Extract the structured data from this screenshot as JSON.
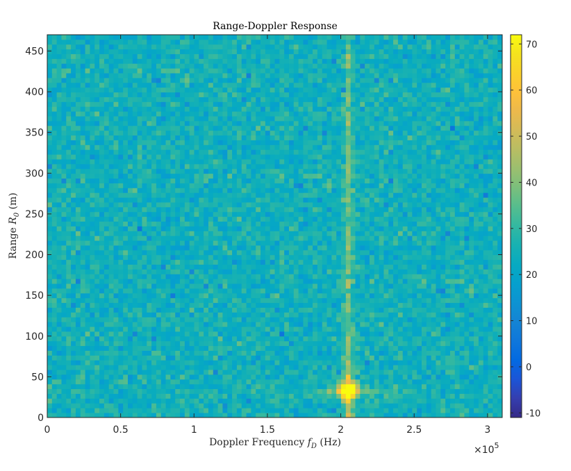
{
  "chart_data": {
    "type": "heatmap",
    "title": "Range-Doppler Response",
    "xlabel": "Doppler Frequency",
    "xlabel_symbol": "f",
    "xlabel_subscript": "D",
    "xlabel_unit": "(Hz)",
    "ylabel": "Range",
    "ylabel_symbol": "R",
    "ylabel_subscript": "0",
    "ylabel_unit": "(m)",
    "xlim": [
      0,
      310000
    ],
    "ylim": [
      0,
      470
    ],
    "x_tick_values": [
      0,
      50000,
      100000,
      150000,
      200000,
      250000,
      300000
    ],
    "x_tick_labels": [
      "0",
      "0.5",
      "1",
      "1.5",
      "2",
      "2.5",
      "3"
    ],
    "x_exponent_base": "×10",
    "x_exponent_power": "5",
    "y_tick_values": [
      0,
      50,
      100,
      150,
      200,
      250,
      300,
      350,
      400,
      450
    ],
    "y_tick_labels": [
      "0",
      "50",
      "100",
      "150",
      "200",
      "250",
      "300",
      "350",
      "400",
      "450"
    ],
    "colorbar_ticks": [
      -10,
      0,
      10,
      20,
      30,
      40,
      50,
      60,
      70
    ],
    "colorbar_tick_labels": [
      "-10",
      "0",
      "10",
      "20",
      "30",
      "40",
      "50",
      "60",
      "70"
    ],
    "clim": [
      -11,
      72
    ],
    "colormap": "parula",
    "grid": false,
    "noise_floor_db": 25,
    "peak": {
      "doppler_hz": 205000,
      "range_m": 33,
      "value_db": 71
    },
    "ridge_doppler_hz": 205000,
    "grid_size": {
      "doppler_bins": 96,
      "range_bins": 80
    }
  }
}
